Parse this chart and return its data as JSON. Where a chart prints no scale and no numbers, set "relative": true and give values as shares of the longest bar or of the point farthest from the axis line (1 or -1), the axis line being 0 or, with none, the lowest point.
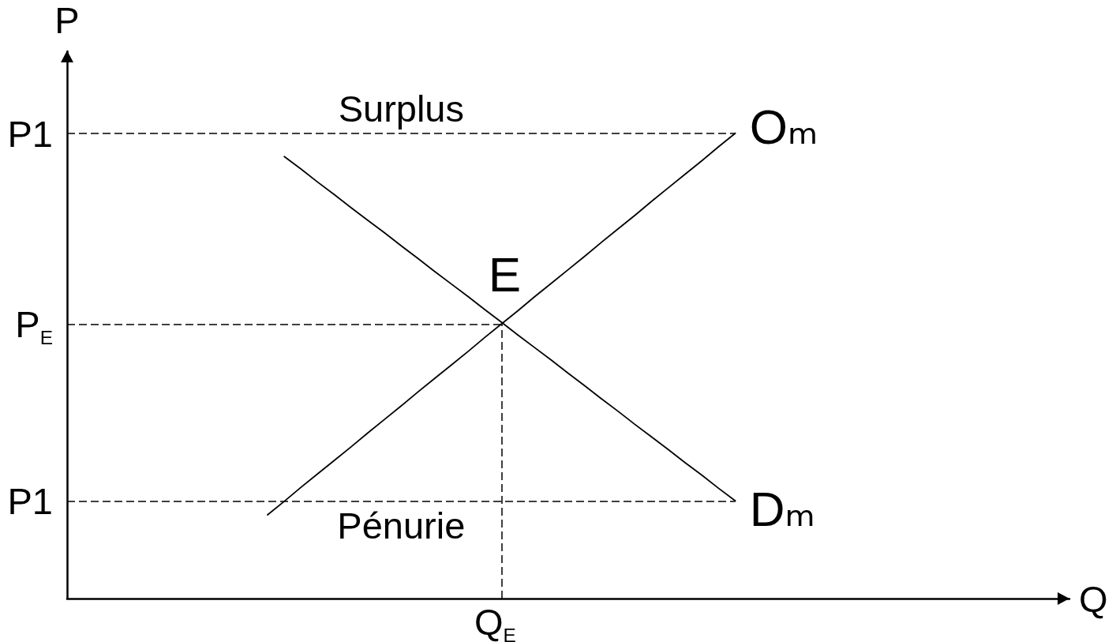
{
  "chart_data": {
    "type": "line",
    "relative": true,
    "xlabel": "Q",
    "ylabel": "P",
    "marker": "none",
    "categories": [
      null,
      null,
      null,
      null,
      null,
      null,
      null,
      null,
      null,
      null,
      null,
      null,
      null,
      null,
      null,
      null,
      null,
      null,
      null,
      null,
      null,
      null,
      null,
      null,
      null,
      null,
      null,
      null,
      null,
      null,
      null,
      null,
      null,
      null,
      null,
      null,
      null,
      null,
      null,
      null,
      null,
      null,
      null,
      null,
      null,
      null,
      null,
      null,
      null,
      null,
      null,
      null,
      null,
      null,
      null,
      null,
      null,
      null,
      null,
      null,
      null
    ],
    "series": [
      {
        "name": "Oₘ",
        "color": "#000000",
        "values": [
          null,
          null,
          null,
          null,
          null,
          null,
          null,
          null,
          null,
          null,
          null,
          null,
          0.18,
          0.209,
          0.239,
          0.268,
          0.297,
          0.326,
          0.356,
          0.385,
          0.414,
          0.444,
          0.473,
          0.502,
          0.531,
          0.561,
          0.59,
          0.619,
          0.649,
          0.678,
          0.707,
          0.736,
          0.766,
          0.795,
          0.824,
          0.854,
          0.883,
          0.912,
          0.941,
          0.971,
          1.0,
          null,
          null,
          null,
          null,
          null,
          null,
          null,
          null,
          null,
          null,
          null,
          null,
          null,
          null,
          null,
          null,
          null,
          null,
          null,
          null
        ]
      },
      {
        "name": "Dₘ",
        "color": "#000000",
        "values": [
          null,
          null,
          null,
          null,
          null,
          null,
          null,
          null,
          null,
          null,
          null,
          null,
          null,
          0.95,
          0.923,
          0.895,
          0.868,
          0.84,
          0.813,
          0.786,
          0.758,
          0.731,
          0.703,
          0.676,
          0.649,
          0.621,
          0.594,
          0.566,
          0.539,
          0.512,
          0.484,
          0.457,
          0.429,
          0.402,
          0.374,
          0.347,
          0.32,
          0.292,
          0.265,
          0.237,
          0.21,
          null,
          null,
          null,
          null,
          null,
          null,
          null,
          null,
          null,
          null,
          null,
          null,
          null,
          null,
          null,
          null,
          null,
          null,
          null,
          null
        ]
      }
    ],
    "ref_lines": [
      {
        "axis": "y",
        "value": 1,
        "label": "P1",
        "color": "#000000",
        "line_style": "dashed"
      },
      {
        "axis": "y",
        "value": 0.59,
        "label": "P$_{E}$",
        "color": "#000000",
        "line_style": "dashed"
      },
      {
        "axis": "y",
        "value": 0.21,
        "label": "P1",
        "color": "#000000",
        "line_style": "dashed"
      }
    ],
    "annotations": [
      "Surplus",
      "E",
      "Pénurie",
      "Q$_{E}$"
    ]
  }
}
